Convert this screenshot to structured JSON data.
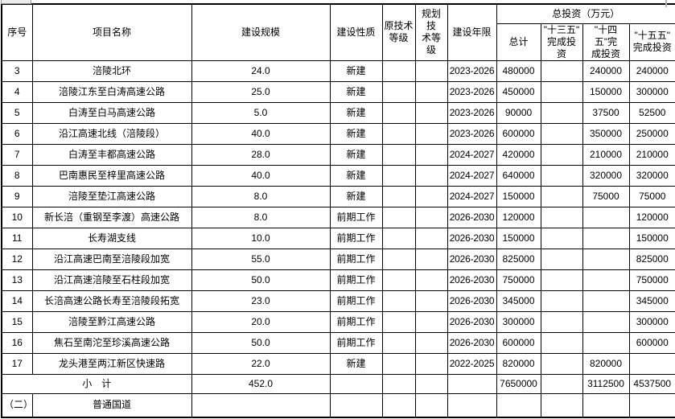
{
  "table": {
    "headers": {
      "no": "序号",
      "name": "项目名称",
      "scale": "建设规模",
      "nature": "建设性质",
      "orig_grade": "原技术\n等级",
      "plan_grade": "规划技\n术等级",
      "years": "建设年限",
      "investment_group": "总投资（万元）",
      "total": "总计",
      "p13": "\"十三五\"\n完成投资",
      "p14": "\"十四五\"完\n成投资",
      "p15": "\"十五五\"\n完成投资"
    },
    "rows": [
      {
        "no": "3",
        "name": "涪陵北环",
        "scale": "24.0",
        "nature": "新建",
        "orig": "",
        "plan": "",
        "years": "2023-2026",
        "total": "480000",
        "p13": "",
        "p14": "240000",
        "p15": "240000"
      },
      {
        "no": "4",
        "name": "涪陵江东至白涛高速公路",
        "scale": "25.0",
        "nature": "新建",
        "orig": "",
        "plan": "",
        "years": "2023-2026",
        "total": "450000",
        "p13": "",
        "p14": "150000",
        "p15": "300000"
      },
      {
        "no": "5",
        "name": "白涛至白马高速公路",
        "scale": "5.0",
        "nature": "新建",
        "orig": "",
        "plan": "",
        "years": "2023-2026",
        "total": "90000",
        "p13": "",
        "p14": "37500",
        "p15": "52500"
      },
      {
        "no": "6",
        "name": "沿江高速北线（涪陵段）",
        "scale": "40.0",
        "nature": "新建",
        "orig": "",
        "plan": "",
        "years": "2023-2026",
        "total": "600000",
        "p13": "",
        "p14": "350000",
        "p15": "250000"
      },
      {
        "no": "7",
        "name": "白涛至丰都高速公路",
        "scale": "28.0",
        "nature": "新建",
        "orig": "",
        "plan": "",
        "years": "2024-2027",
        "total": "420000",
        "p13": "",
        "p14": "210000",
        "p15": "210000"
      },
      {
        "no": "8",
        "name": "巴南惠民至梓里高速公路",
        "scale": "40.0",
        "nature": "新建",
        "orig": "",
        "plan": "",
        "years": "2024-2027",
        "total": "640000",
        "p13": "",
        "p14": "320000",
        "p15": "320000"
      },
      {
        "no": "9",
        "name": "涪陵至垫江高速公路",
        "scale": "8.0",
        "nature": "新建",
        "orig": "",
        "plan": "",
        "years": "2024-2027",
        "total": "150000",
        "p13": "",
        "p14": "75000",
        "p15": "75000"
      },
      {
        "no": "10",
        "name": "新长涪（重钢至李渡）高速公路",
        "scale": "8.0",
        "nature": "前期工作",
        "orig": "",
        "plan": "",
        "years": "2026-2030",
        "total": "120000",
        "p13": "",
        "p14": "",
        "p15": "120000"
      },
      {
        "no": "11",
        "name": "长寿湖支线",
        "scale": "10.0",
        "nature": "前期工作",
        "orig": "",
        "plan": "",
        "years": "2026-2030",
        "total": "150000",
        "p13": "",
        "p14": "",
        "p15": "150000"
      },
      {
        "no": "12",
        "name": "沿江高速巴南至涪陵段加宽",
        "scale": "55.0",
        "nature": "前期工作",
        "orig": "",
        "plan": "",
        "years": "2026-2030",
        "total": "825000",
        "p13": "",
        "p14": "",
        "p15": "825000"
      },
      {
        "no": "13",
        "name": "沿江高速涪陵至石柱段加宽",
        "scale": "50.0",
        "nature": "前期工作",
        "orig": "",
        "plan": "",
        "years": "2026-2030",
        "total": "750000",
        "p13": "",
        "p14": "",
        "p15": "750000"
      },
      {
        "no": "14",
        "name": "长涪高速公路长寿至涪陵段拓宽",
        "scale": "23.0",
        "nature": "前期工作",
        "orig": "",
        "plan": "",
        "years": "2026-2030",
        "total": "345000",
        "p13": "",
        "p14": "",
        "p15": "345000"
      },
      {
        "no": "15",
        "name": "涪陵至黔江高速公路",
        "scale": "20.0",
        "nature": "前期工作",
        "orig": "",
        "plan": "",
        "years": "2026-2030",
        "total": "300000",
        "p13": "",
        "p14": "",
        "p15": "300000"
      },
      {
        "no": "16",
        "name": "焦石至南沱至珍溪高速公路",
        "scale": "50.0",
        "nature": "前期工作",
        "orig": "",
        "plan": "",
        "years": "2026-2030",
        "total": "600000",
        "p13": "",
        "p14": "",
        "p15": "600000"
      },
      {
        "no": "17",
        "name": "龙头港至两江新区快速路",
        "scale": "22.0",
        "nature": "新建",
        "orig": "",
        "plan": "",
        "years": "2022-2025",
        "total": "820000",
        "p13": "",
        "p14": "820000",
        "p15": ""
      }
    ],
    "subtotal": {
      "label": "小　计",
      "scale": "452.0",
      "nature": "",
      "orig": "",
      "plan": "",
      "years": "",
      "total": "7650000",
      "p13": "",
      "p14": "3112500",
      "p15": "4537500"
    },
    "section": {
      "no": "（二）",
      "name": "普通国道"
    }
  }
}
